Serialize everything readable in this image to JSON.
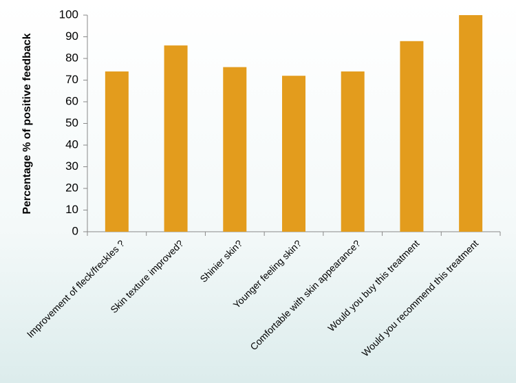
{
  "chart_data": {
    "type": "bar",
    "y_label": "Percentage % of positive feedback",
    "categories": [
      "Improvement of fleck/freckles ?",
      "Skin texture improved?",
      "Shinier skin?",
      "Younger feeling skin?",
      "Comfortable with skin appearance?",
      "Would you buy this treatment",
      "Would you recommend this treatment"
    ],
    "values": [
      74,
      86,
      76,
      72,
      74,
      88,
      100
    ],
    "color": "#e39c1d",
    "ylim": [
      0,
      100
    ],
    "yticks": [
      0,
      10,
      20,
      30,
      40,
      50,
      60,
      70,
      80,
      90,
      100
    ],
    "grid": false
  }
}
